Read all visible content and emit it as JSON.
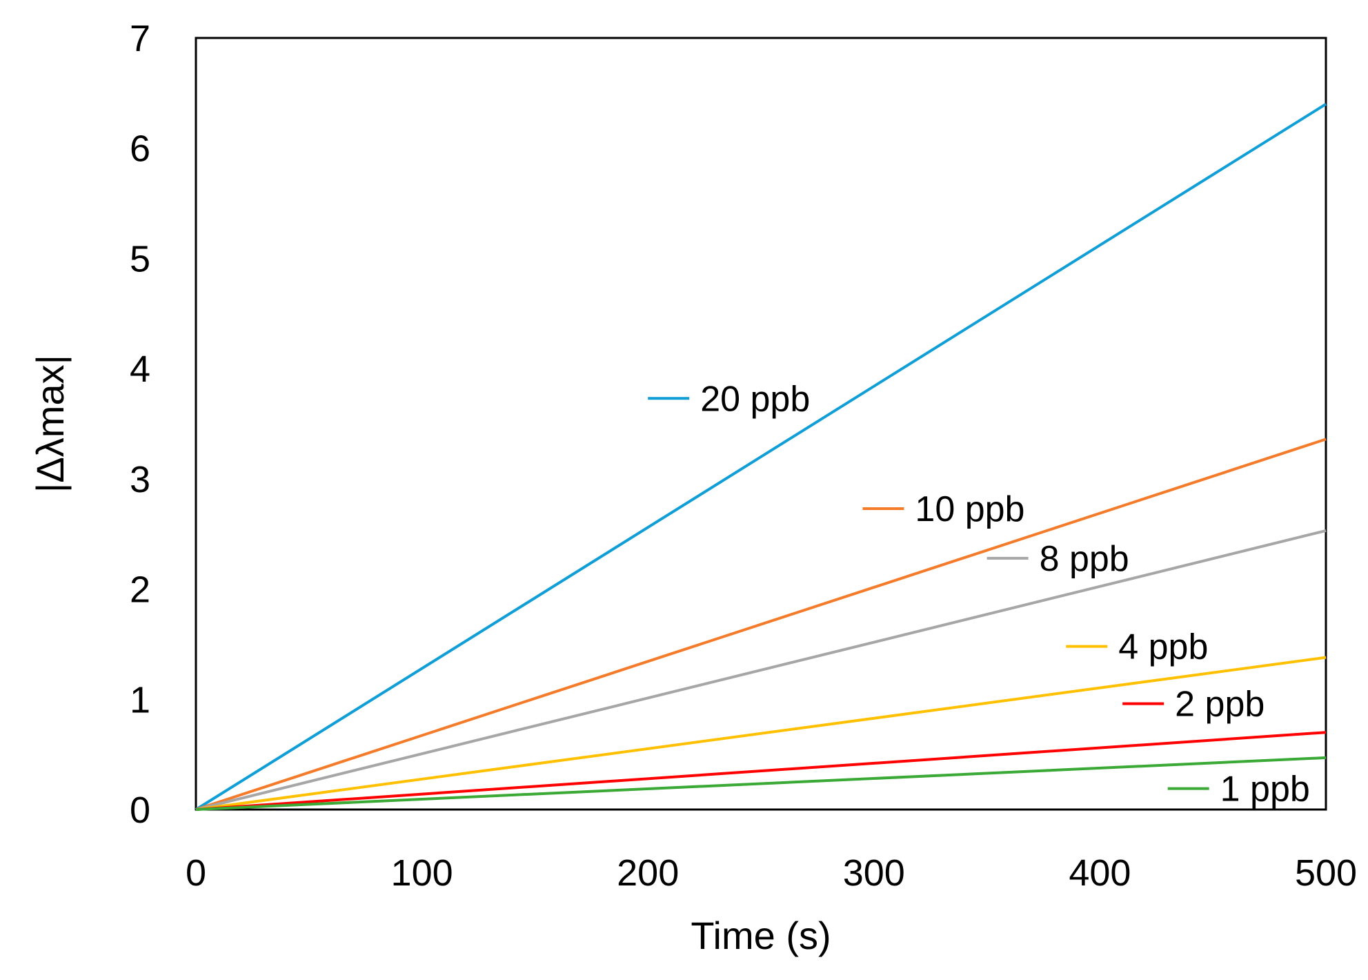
{
  "chart_data": {
    "type": "line",
    "title": "",
    "xlabel": "Time (s)",
    "ylabel": "|Δλmax|",
    "xlim": [
      0,
      500
    ],
    "ylim": [
      0,
      7
    ],
    "xticks": [
      0,
      100,
      200,
      300,
      400,
      500
    ],
    "yticks": [
      0,
      1,
      2,
      3,
      4,
      5,
      6,
      7
    ],
    "grid": false,
    "legend_placement": "inline",
    "series": [
      {
        "name": "20 ppb",
        "color": "#0F9ED5",
        "x": [
          0,
          500
        ],
        "y": [
          0,
          6.4
        ],
        "label_anchor": [
          200,
          3.73
        ]
      },
      {
        "name": "10 ppb",
        "color": "#F47B2A",
        "x": [
          0,
          500
        ],
        "y": [
          0,
          3.36
        ],
        "label_anchor": [
          295,
          2.73
        ]
      },
      {
        "name": "8 ppb",
        "color": "#A6A6A6",
        "x": [
          0,
          500
        ],
        "y": [
          0,
          2.53
        ],
        "label_anchor": [
          350,
          2.28
        ]
      },
      {
        "name": "4 ppb",
        "color": "#FFC000",
        "x": [
          0,
          500
        ],
        "y": [
          0,
          1.38
        ],
        "label_anchor": [
          385,
          1.48
        ]
      },
      {
        "name": "2 ppb",
        "color": "#FF0000",
        "x": [
          0,
          500
        ],
        "y": [
          0,
          0.7
        ],
        "label_anchor": [
          410,
          0.96
        ]
      },
      {
        "name": "1 ppb",
        "color": "#3AA935",
        "x": [
          0,
          500
        ],
        "y": [
          0,
          0.47
        ],
        "label_anchor": [
          430,
          0.19
        ]
      }
    ]
  }
}
